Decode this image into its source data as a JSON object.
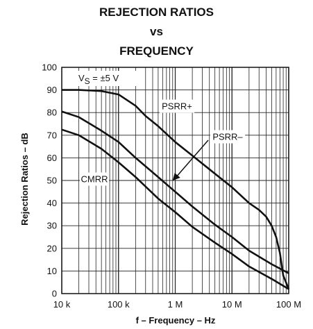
{
  "chart_data": {
    "type": "line",
    "title_lines": [
      "REJECTION RATIOS",
      "vs",
      "FREQUENCY"
    ],
    "xlabel": "f – Frequency – Hz",
    "ylabel": "Rejection Ratios – dB",
    "x_scale": "log",
    "xlim": [
      10000,
      100000000
    ],
    "ylim": [
      0,
      100
    ],
    "x_ticks": [
      {
        "value": 10000,
        "label": "10 k"
      },
      {
        "value": 100000,
        "label": "100 k"
      },
      {
        "value": 1000000,
        "label": "1 M"
      },
      {
        "value": 10000000,
        "label": "10 M"
      },
      {
        "value": 100000000,
        "label": "100 M"
      }
    ],
    "y_ticks": [
      0,
      10,
      20,
      30,
      40,
      50,
      60,
      70,
      80,
      90,
      100
    ],
    "grid": true,
    "condition": {
      "main": "V",
      "sub": "S",
      "rest": " = ±5 V"
    },
    "series": [
      {
        "name": "PSRR+",
        "x": [
          10000,
          20000,
          50000,
          100000,
          200000,
          300000,
          500000,
          1000000,
          2000000,
          5000000,
          10000000,
          20000000,
          30000000,
          40000000,
          50000000,
          60000000,
          70000000,
          80000000,
          100000000
        ],
        "y": [
          90,
          90,
          89.5,
          88,
          83,
          78.5,
          74,
          67,
          61,
          53,
          47,
          40,
          37,
          34,
          30,
          25,
          18,
          8,
          2
        ]
      },
      {
        "name": "PSRR–",
        "x": [
          10000,
          20000,
          50000,
          100000,
          200000,
          500000,
          1000000,
          2000000,
          5000000,
          10000000,
          20000000,
          50000000,
          100000000
        ],
        "y": [
          80.5,
          78,
          72,
          67,
          60,
          51.5,
          45,
          38.5,
          30.5,
          25,
          19,
          13,
          9
        ]
      },
      {
        "name": "CMRR",
        "x": [
          10000,
          20000,
          50000,
          100000,
          200000,
          500000,
          1000000,
          2000000,
          5000000,
          10000000,
          20000000,
          50000000,
          100000000
        ],
        "y": [
          72.5,
          70,
          64,
          58,
          51.5,
          42,
          36,
          29.5,
          22.5,
          17.5,
          12,
          6.5,
          2
        ]
      }
    ],
    "annotations": [
      {
        "text": "PSRR+",
        "series": "PSRR+"
      },
      {
        "text": "PSRR–",
        "series": "PSRR–",
        "arrow_to": {
          "x": 900000,
          "y": 50
        }
      },
      {
        "text": "CMRR",
        "series": "CMRR"
      }
    ]
  }
}
